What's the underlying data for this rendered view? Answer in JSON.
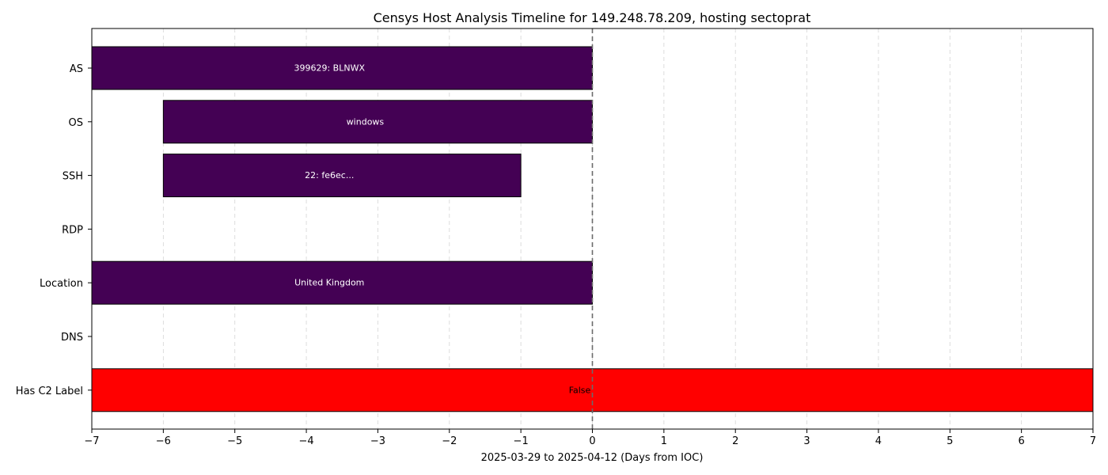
{
  "chart_data": {
    "type": "bar",
    "orientation": "horizontal",
    "title": "Censys Host Analysis Timeline for 149.248.78.209, hosting sectoprat",
    "xlabel": "2025-03-29 to 2025-04-12 (Days from IOC)",
    "ylabel": "",
    "xlim": [
      -7,
      7
    ],
    "xticks": [
      -7,
      -6,
      -5,
      -4,
      -3,
      -2,
      -1,
      0,
      1,
      2,
      3,
      4,
      5,
      6,
      7
    ],
    "xtick_labels": [
      "−7",
      "−6",
      "−5",
      "−4",
      "−3",
      "−2",
      "−1",
      "0",
      "1",
      "2",
      "3",
      "4",
      "5",
      "6",
      "7"
    ],
    "grid": {
      "x": true,
      "y": false,
      "style": "dashed"
    },
    "reference_line": {
      "x": 0,
      "style": "dashed",
      "color": "#6b6b6b"
    },
    "categories": [
      "AS",
      "OS",
      "SSH",
      "RDP",
      "Location",
      "DNS",
      "Has C2 Label"
    ],
    "bars": [
      {
        "category": "AS",
        "start": -7,
        "end": 0,
        "label": "399629: BLNWX",
        "color": "#440154",
        "label_color": "#ffffff"
      },
      {
        "category": "OS",
        "start": -6,
        "end": 0,
        "label": "windows",
        "color": "#440154",
        "label_color": "#ffffff"
      },
      {
        "category": "SSH",
        "start": -6,
        "end": -1,
        "label": "22: fe6ec...",
        "color": "#440154",
        "label_color": "#ffffff"
      },
      {
        "category": "Location",
        "start": -7,
        "end": 0,
        "label": "United Kingdom",
        "color": "#440154",
        "label_color": "#ffffff"
      },
      {
        "category": "DNS",
        "start": 7,
        "end": 7,
        "label": "",
        "color": "#440154",
        "label_color": "#ffffff"
      },
      {
        "category": "Has C2 Label",
        "start": -7,
        "end": 7,
        "label": "False",
        "color": "#ff0000",
        "label_color": "#000000"
      }
    ]
  }
}
